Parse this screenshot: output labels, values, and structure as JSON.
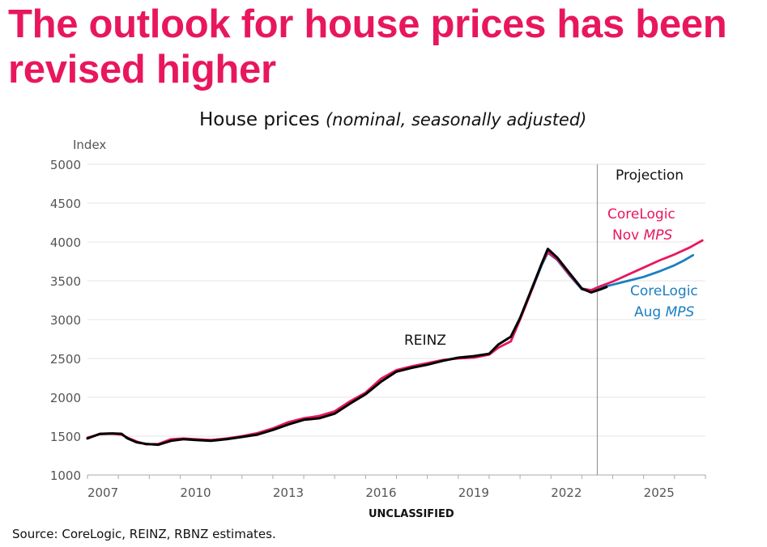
{
  "slide": {
    "headline": "The outlook for house prices has been revised higher",
    "classification": "UNCLASSIFIED",
    "source": "Source: CoreLogic, REINZ, RBNZ estimates."
  },
  "chart_data": {
    "type": "line",
    "title": "House prices",
    "subtitle": "(nominal, seasonally adjusted)",
    "ylabel": "Index",
    "xlabel": "",
    "xlim": [
      2007,
      2027
    ],
    "ylim": [
      1000,
      5000
    ],
    "yticks": [
      1000,
      1500,
      2000,
      2500,
      3000,
      3500,
      4000,
      4500,
      5000
    ],
    "xtick_labels": [
      "2007",
      "2010",
      "2013",
      "2016",
      "2019",
      "2022",
      "2025"
    ],
    "grid": true,
    "projection_start": 2023.5,
    "projection_label": "Projection",
    "colors": {
      "reinz": "#000000",
      "nov": "#e8175d",
      "aug": "#1a7fc1",
      "headline": "#e8175d"
    },
    "series": [
      {
        "name": "REINZ",
        "label": "REINZ",
        "x": [
          2007.0,
          2007.4,
          2007.8,
          2008.1,
          2008.3,
          2008.6,
          2008.9,
          2009.3,
          2009.7,
          2010.1,
          2010.5,
          2011.0,
          2011.5,
          2012.0,
          2012.5,
          2013.0,
          2013.5,
          2014.0,
          2014.5,
          2015.0,
          2015.5,
          2016.0,
          2016.5,
          2017.0,
          2017.5,
          2018.0,
          2018.5,
          2019.0,
          2019.5,
          2020.0,
          2020.3,
          2020.7,
          2021.0,
          2021.4,
          2021.7,
          2021.9,
          2022.2,
          2022.6,
          2023.0,
          2023.3,
          2023.6,
          2023.8
        ],
        "y": [
          1470,
          1530,
          1535,
          1530,
          1470,
          1420,
          1400,
          1390,
          1440,
          1460,
          1450,
          1440,
          1460,
          1490,
          1520,
          1580,
          1650,
          1710,
          1730,
          1790,
          1920,
          2040,
          2200,
          2330,
          2380,
          2420,
          2470,
          2510,
          2530,
          2560,
          2680,
          2780,
          3020,
          3420,
          3720,
          3910,
          3800,
          3600,
          3400,
          3350,
          3390,
          3420
        ]
      },
      {
        "name": "CoreLogic Nov MPS",
        "label_line1": "CoreLogic",
        "label_line2_prefix": "Nov ",
        "label_line2_italic": "MPS",
        "x": [
          2007.0,
          2007.4,
          2007.8,
          2008.1,
          2008.3,
          2008.6,
          2008.9,
          2009.3,
          2009.7,
          2010.1,
          2010.5,
          2011.0,
          2011.5,
          2012.0,
          2012.5,
          2013.0,
          2013.5,
          2014.0,
          2014.5,
          2015.0,
          2015.5,
          2016.0,
          2016.5,
          2017.0,
          2017.5,
          2018.0,
          2018.5,
          2019.0,
          2019.5,
          2020.0,
          2020.3,
          2020.7,
          2021.0,
          2021.4,
          2021.7,
          2021.9,
          2022.2,
          2022.6,
          2023.0,
          2023.3,
          2023.6,
          2024.0,
          2024.5,
          2025.0,
          2025.5,
          2026.0,
          2026.5,
          2026.9
        ],
        "y": [
          1480,
          1525,
          1530,
          1520,
          1480,
          1430,
          1395,
          1400,
          1460,
          1470,
          1460,
          1450,
          1470,
          1500,
          1540,
          1600,
          1680,
          1730,
          1760,
          1820,
          1950,
          2060,
          2240,
          2350,
          2400,
          2440,
          2480,
          2500,
          2510,
          2550,
          2640,
          2720,
          3000,
          3400,
          3720,
          3870,
          3780,
          3580,
          3400,
          3380,
          3430,
          3490,
          3580,
          3670,
          3760,
          3840,
          3930,
          4020
        ]
      },
      {
        "name": "CoreLogic Aug MPS",
        "label_line1": "CoreLogic",
        "label_line2_prefix": "Aug ",
        "label_line2_italic": "MPS",
        "x": [
          2021.4,
          2021.7,
          2021.9,
          2022.2,
          2022.6,
          2023.0,
          2023.3,
          2023.6,
          2024.0,
          2024.5,
          2025.0,
          2025.5,
          2026.0,
          2026.3,
          2026.6
        ],
        "y": [
          3400,
          3700,
          3860,
          3770,
          3570,
          3390,
          3370,
          3410,
          3450,
          3500,
          3550,
          3620,
          3700,
          3760,
          3830
        ]
      }
    ]
  }
}
